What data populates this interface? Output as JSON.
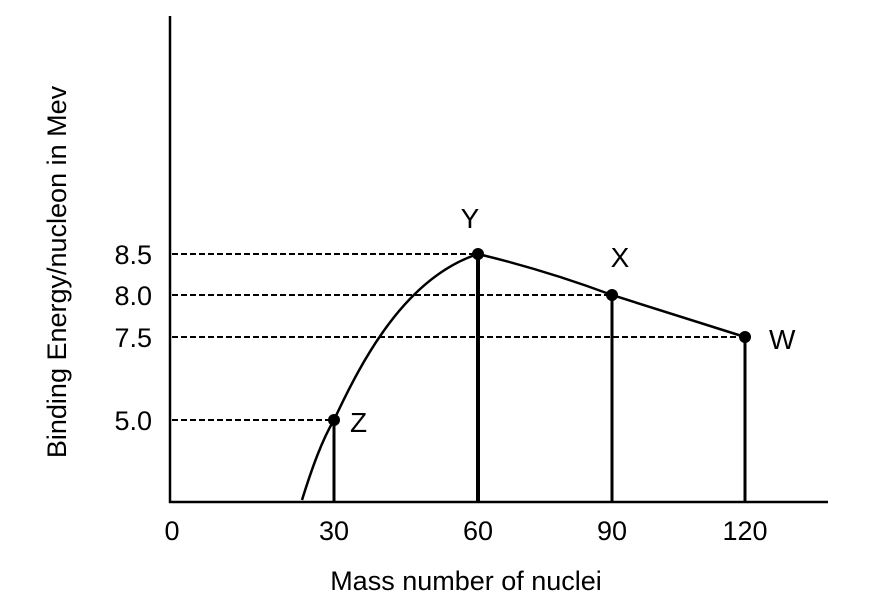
{
  "chart_data": {
    "type": "line",
    "title": "",
    "xlabel": "Mass number of nuclei",
    "ylabel": "Binding Energy/nucleon in Mev",
    "x_ticks": [
      "0",
      "30",
      "60",
      "90",
      "120"
    ],
    "y_ticks": [
      "5.0",
      "7.5",
      "8.0",
      "8.5"
    ],
    "grid": false,
    "points": [
      {
        "label": "Z",
        "x": 30,
        "y": 5.0
      },
      {
        "label": "Y",
        "x": 60,
        "y": 8.5
      },
      {
        "label": "X",
        "x": 90,
        "y": 8.0
      },
      {
        "label": "W",
        "x": 120,
        "y": 7.5
      }
    ]
  }
}
